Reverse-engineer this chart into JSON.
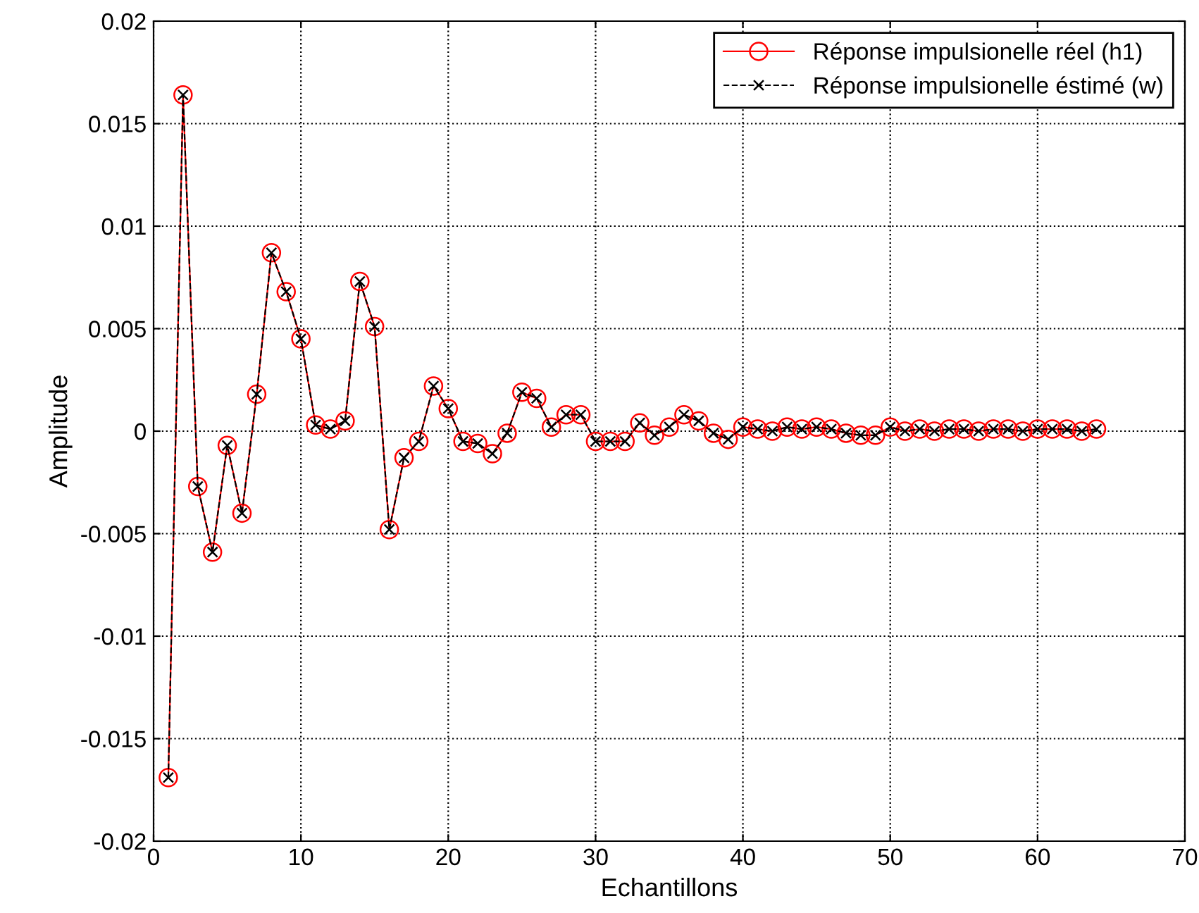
{
  "chart_data": {
    "type": "line",
    "xlabel": "Echantillons",
    "ylabel": "Amplitude",
    "x": [
      1,
      2,
      3,
      4,
      5,
      6,
      7,
      8,
      9,
      10,
      11,
      12,
      13,
      14,
      15,
      16,
      17,
      18,
      19,
      20,
      21,
      22,
      23,
      24,
      25,
      26,
      27,
      28,
      29,
      30,
      31,
      32,
      33,
      34,
      35,
      36,
      37,
      38,
      39,
      40,
      41,
      42,
      43,
      44,
      45,
      46,
      47,
      48,
      49,
      50,
      51,
      52,
      53,
      54,
      55,
      56,
      57,
      58,
      59,
      60,
      61,
      62,
      63,
      64
    ],
    "series": [
      {
        "name": "Réponse impulsionelle réel (h1)",
        "color": "#ff0000",
        "marker": "circle",
        "line_style": "solid",
        "values": [
          -0.0169,
          0.0164,
          -0.0027,
          -0.0059,
          -0.0007,
          -0.004,
          0.0018,
          0.0087,
          0.0068,
          0.0045,
          0.0003,
          0.0001,
          0.0005,
          0.0073,
          0.0051,
          -0.0048,
          -0.0013,
          -0.0005,
          0.0022,
          0.0011,
          -0.0005,
          -0.0006,
          -0.0011,
          -0.0001,
          0.0019,
          0.0016,
          0.0002,
          0.0008,
          0.0008,
          -0.0005,
          -0.0005,
          -0.0005,
          0.0004,
          -0.0002,
          0.0002,
          0.0008,
          0.0005,
          -0.0001,
          -0.0004,
          0.0002,
          0.0001,
          0.0,
          0.0002,
          0.0001,
          0.0002,
          0.0001,
          -0.0001,
          -0.0002,
          -0.0002,
          0.0002,
          0.0,
          0.0001,
          0.0,
          0.0001,
          0.0001,
          0.0,
          0.0001,
          0.0001,
          0.0,
          0.0001,
          0.0001,
          0.0001,
          0.0,
          0.0001
        ]
      },
      {
        "name": "Réponse impulsionelle éstimé (w)",
        "color": "#000000",
        "marker": "cross",
        "line_style": "dashed",
        "values": [
          -0.0169,
          0.0164,
          -0.0027,
          -0.0059,
          -0.0007,
          -0.004,
          0.0018,
          0.0087,
          0.0068,
          0.0045,
          0.0003,
          0.0001,
          0.0005,
          0.0073,
          0.0051,
          -0.0048,
          -0.0013,
          -0.0005,
          0.0022,
          0.0011,
          -0.0005,
          -0.0006,
          -0.0011,
          -0.0001,
          0.0019,
          0.0016,
          0.0002,
          0.0008,
          0.0008,
          -0.0005,
          -0.0005,
          -0.0005,
          0.0004,
          -0.0002,
          0.0002,
          0.0008,
          0.0005,
          -0.0001,
          -0.0004,
          0.0002,
          0.0001,
          0.0,
          0.0002,
          0.0001,
          0.0002,
          0.0001,
          -0.0001,
          -0.0002,
          -0.0002,
          0.0002,
          0.0,
          0.0001,
          0.0,
          0.0001,
          0.0001,
          0.0,
          0.0001,
          0.0001,
          0.0,
          0.0001,
          0.0001,
          0.0001,
          0.0,
          0.0001
        ]
      }
    ],
    "xlim": [
      0,
      70
    ],
    "xticks": [
      0,
      10,
      20,
      30,
      40,
      50,
      60,
      70
    ],
    "ylim": [
      -0.02,
      0.02
    ],
    "yticks": [
      {
        "value": -0.02,
        "label": "-0.02"
      },
      {
        "value": -0.015,
        "label": "-0.015"
      },
      {
        "value": -0.01,
        "label": "-0.01"
      },
      {
        "value": -0.005,
        "label": "-0.005"
      },
      {
        "value": 0,
        "label": "0"
      },
      {
        "value": 0.005,
        "label": "0.005"
      },
      {
        "value": 0.01,
        "label": "0.01"
      },
      {
        "value": 0.015,
        "label": "0.015"
      },
      {
        "value": 0.02,
        "label": "0.02"
      }
    ],
    "grid": true,
    "legend": "top right"
  }
}
